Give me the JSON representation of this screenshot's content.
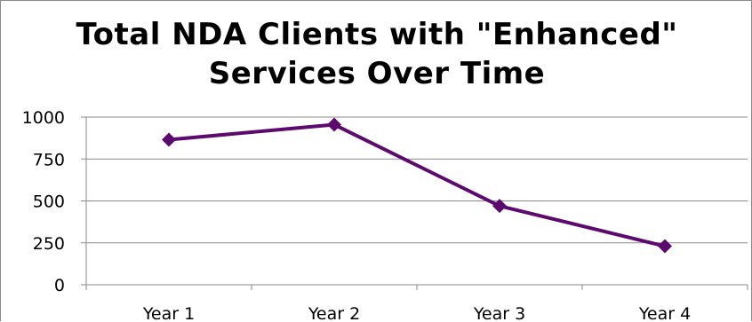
{
  "chart_data": {
    "type": "line",
    "title": "Total NDA Clients with \"Enhanced\"\nServices Over Time",
    "xlabel": "",
    "ylabel": "",
    "categories": [
      "Year 1",
      "Year 2",
      "Year 3",
      "Year 4"
    ],
    "series": [
      {
        "values": [
          865,
          955,
          470,
          230
        ],
        "color": "#5c0a6e",
        "marker": "diamond"
      }
    ],
    "ylim": [
      0,
      1000
    ],
    "yticks": [
      0,
      250,
      500,
      750,
      1000
    ],
    "grid": true,
    "legend": "none"
  }
}
